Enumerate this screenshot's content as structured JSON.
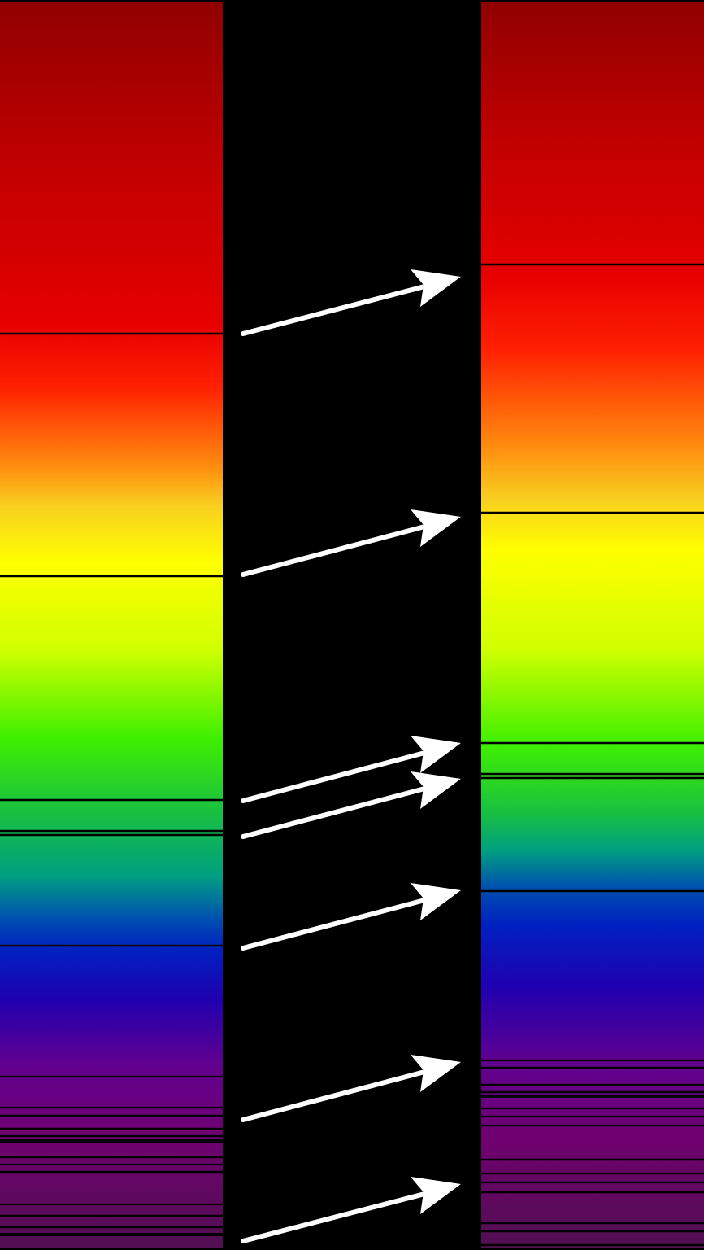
{
  "colors": {
    "background": "#000000",
    "arrow": "#ffffff",
    "absorption_line": "#000000"
  },
  "panels": [
    {
      "name": "rest-spectrum",
      "description_visible": false
    },
    {
      "name": "redshifted-spectrum",
      "description_visible": false
    }
  ],
  "arrow_count": 7
}
